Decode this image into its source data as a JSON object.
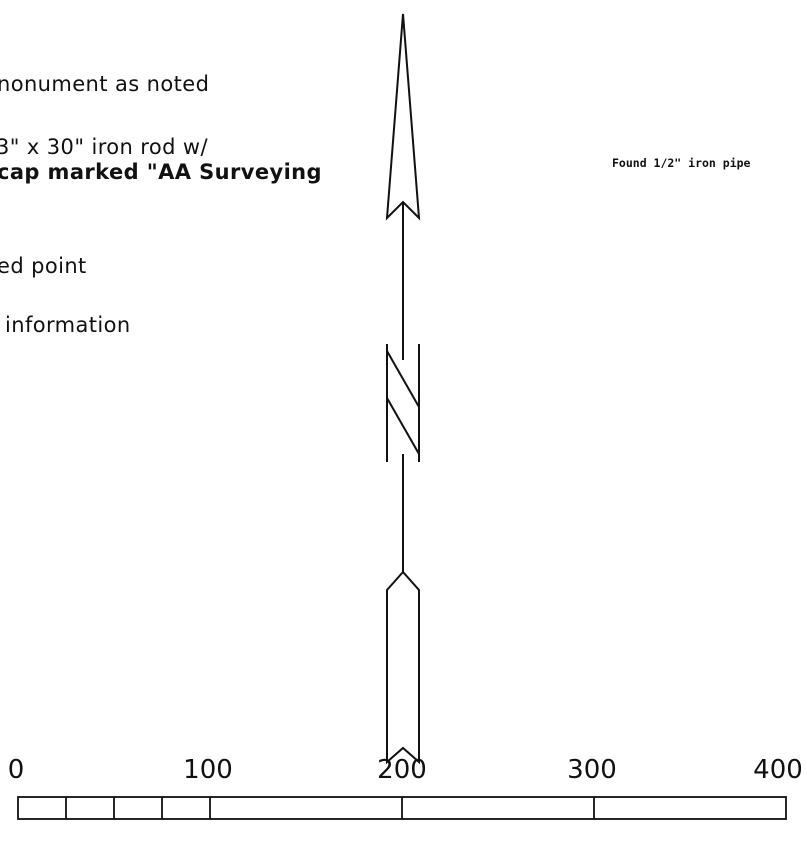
{
  "legend": {
    "monument_text": "nonument as noted",
    "rod_line1": "3\" x 30\" iron rod w/",
    "rod_line2": "cap marked \"AA Surveying",
    "computed_text": "ed point",
    "info_text": "information"
  },
  "callout": {
    "found_pipe": "Found 1/2\" iron pipe"
  },
  "scale_bar": {
    "labels": [
      "0",
      "100",
      "200",
      "300",
      "400"
    ]
  }
}
